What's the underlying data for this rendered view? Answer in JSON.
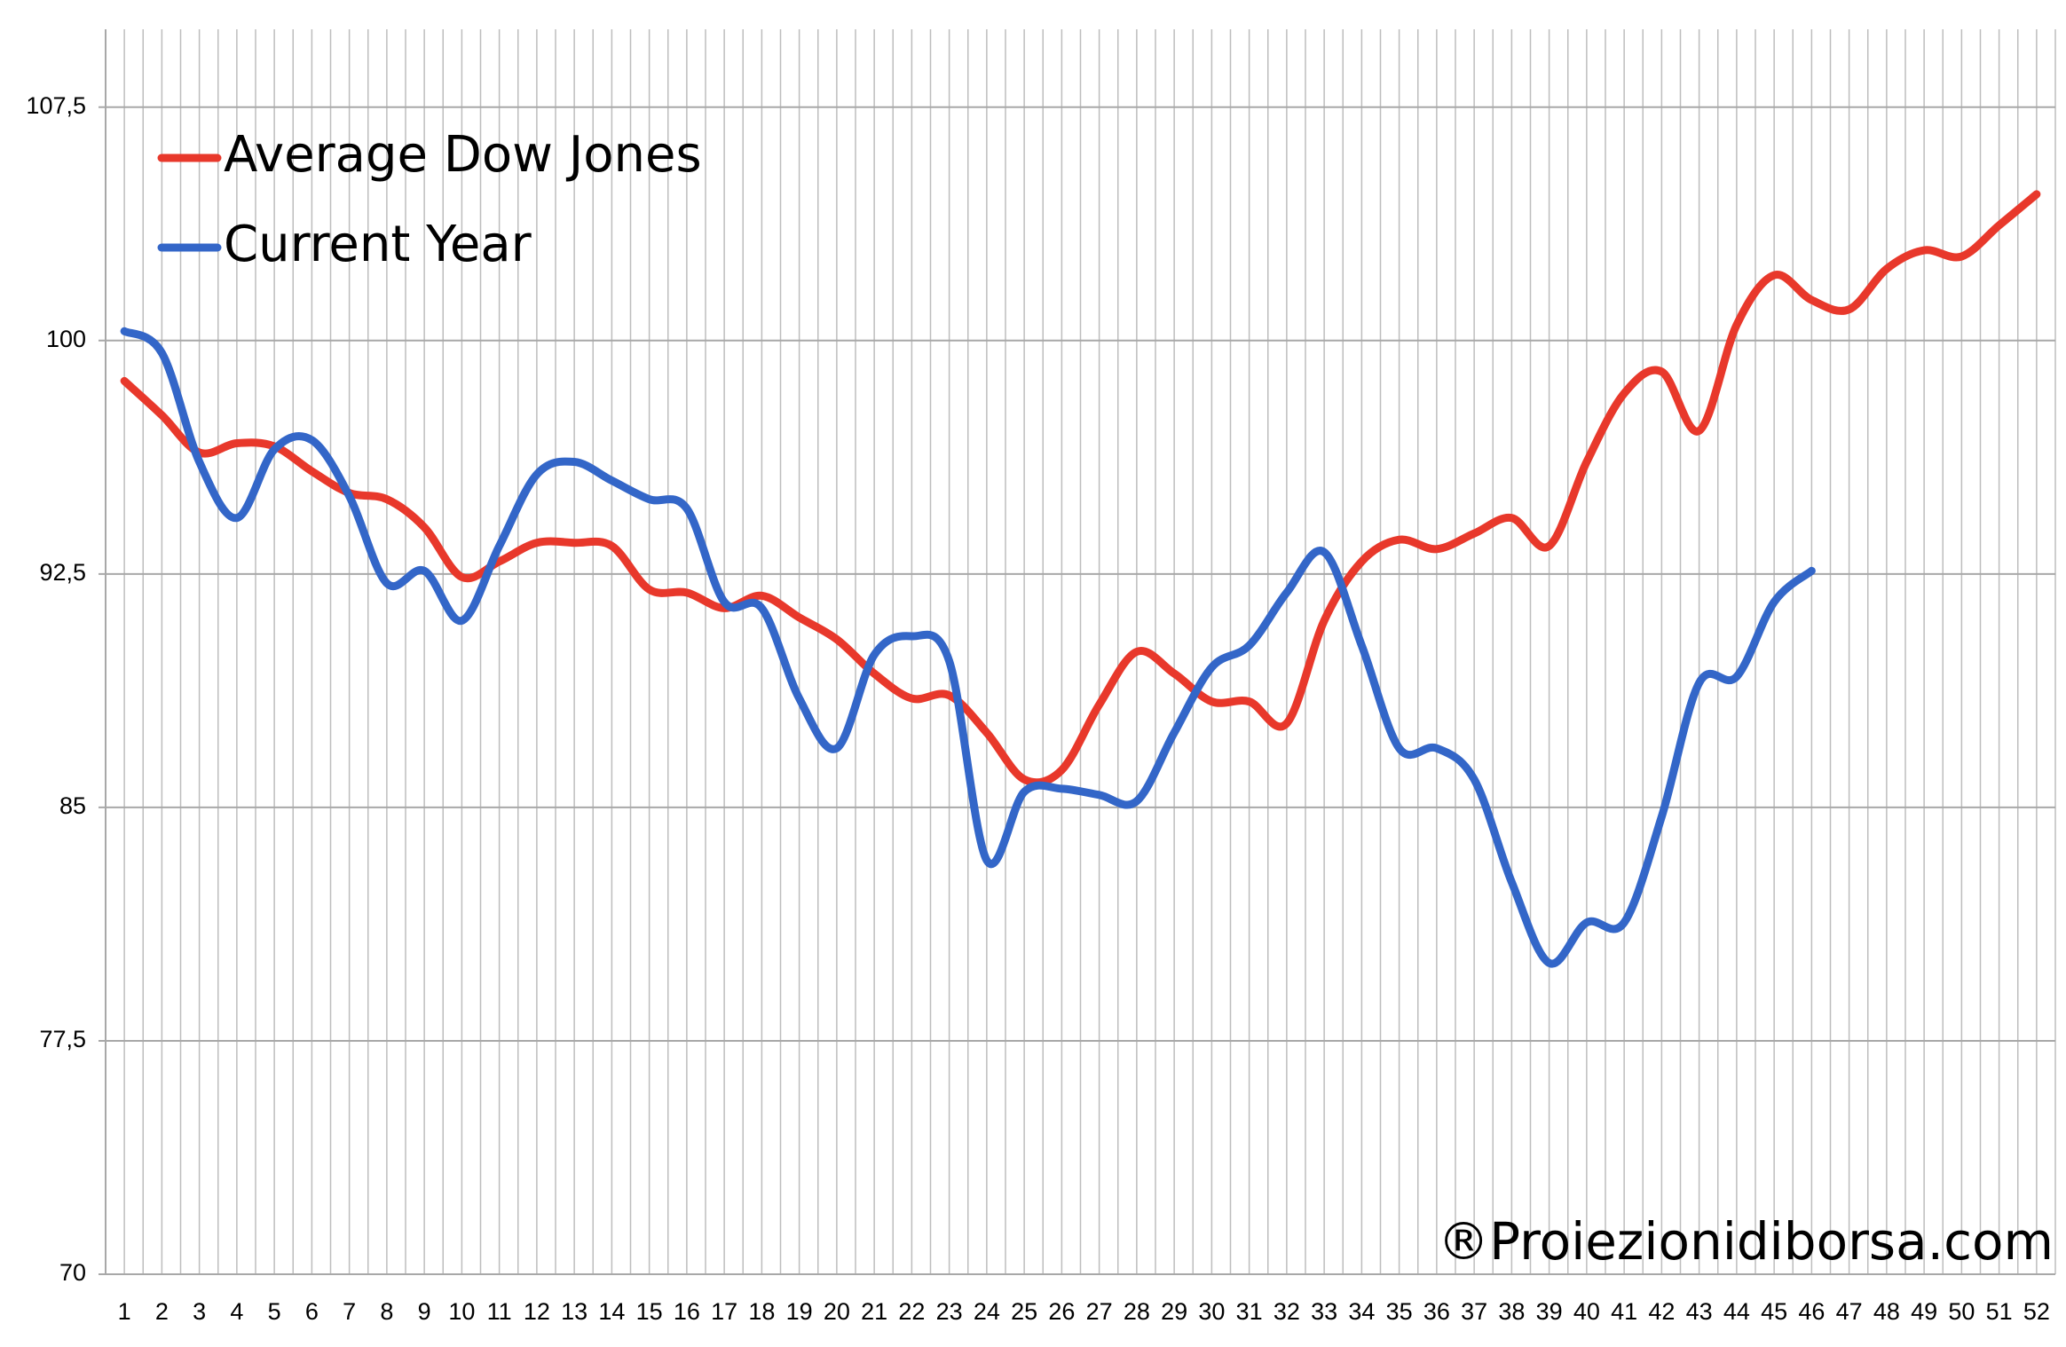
{
  "chart_data": {
    "type": "line",
    "categories": [
      "1",
      "2",
      "3",
      "4",
      "5",
      "6",
      "7",
      "8",
      "9",
      "10",
      "11",
      "12",
      "13",
      "14",
      "15",
      "16",
      "17",
      "18",
      "19",
      "20",
      "21",
      "22",
      "23",
      "24",
      "25",
      "26",
      "27",
      "28",
      "29",
      "30",
      "31",
      "32",
      "33",
      "34",
      "35",
      "36",
      "37",
      "38",
      "39",
      "40",
      "41",
      "42",
      "43",
      "44",
      "45",
      "46",
      "47",
      "48",
      "49",
      "50",
      "51",
      "52"
    ],
    "series": [
      {
        "name": "Average Dow Jones",
        "color": "#e8382b",
        "values": [
          98.7,
          97.6,
          96.4,
          96.7,
          96.6,
          95.8,
          95.1,
          94.9,
          94.0,
          92.4,
          92.9,
          93.5,
          93.5,
          93.4,
          92.0,
          91.9,
          91.4,
          91.8,
          91.1,
          90.4,
          89.3,
          88.5,
          88.6,
          87.4,
          85.9,
          86.2,
          88.3,
          90.0,
          89.3,
          88.4,
          88.4,
          87.7,
          91.0,
          92.9,
          93.6,
          93.3,
          93.8,
          94.3,
          93.4,
          96.1,
          98.3,
          99.0,
          97.1,
          100.5,
          102.1,
          101.3,
          101.0,
          102.3,
          102.9,
          102.7,
          103.7,
          104.7
        ]
      },
      {
        "name": "Current Year",
        "color": "#3366c8",
        "values": [
          100.3,
          99.6,
          96.1,
          94.3,
          96.5,
          96.8,
          95.0,
          92.2,
          92.6,
          91.0,
          93.4,
          95.7,
          96.1,
          95.5,
          94.9,
          94.6,
          91.6,
          91.4,
          88.5,
          86.9,
          89.9,
          90.5,
          89.7,
          83.3,
          85.5,
          85.6,
          85.4,
          85.2,
          87.4,
          89.5,
          90.2,
          91.9,
          93.2,
          90.2,
          86.9,
          86.9,
          85.9,
          82.6,
          80.0,
          81.3,
          81.3,
          84.7,
          89.0,
          89.2,
          91.6,
          92.6,
          null,
          null,
          null,
          null,
          null,
          null
        ]
      }
    ],
    "ylim": [
      70,
      110
    ],
    "yticks": [
      70,
      {
        "value": 77.5,
        "label": "77,5"
      },
      85,
      {
        "value": 92.5,
        "label": "92,5"
      },
      100,
      {
        "value": 107.5,
        "label": "107,5"
      }
    ],
    "grid": true,
    "legend": "top-left",
    "watermark": "®Proiezionidiborsa.com"
  }
}
